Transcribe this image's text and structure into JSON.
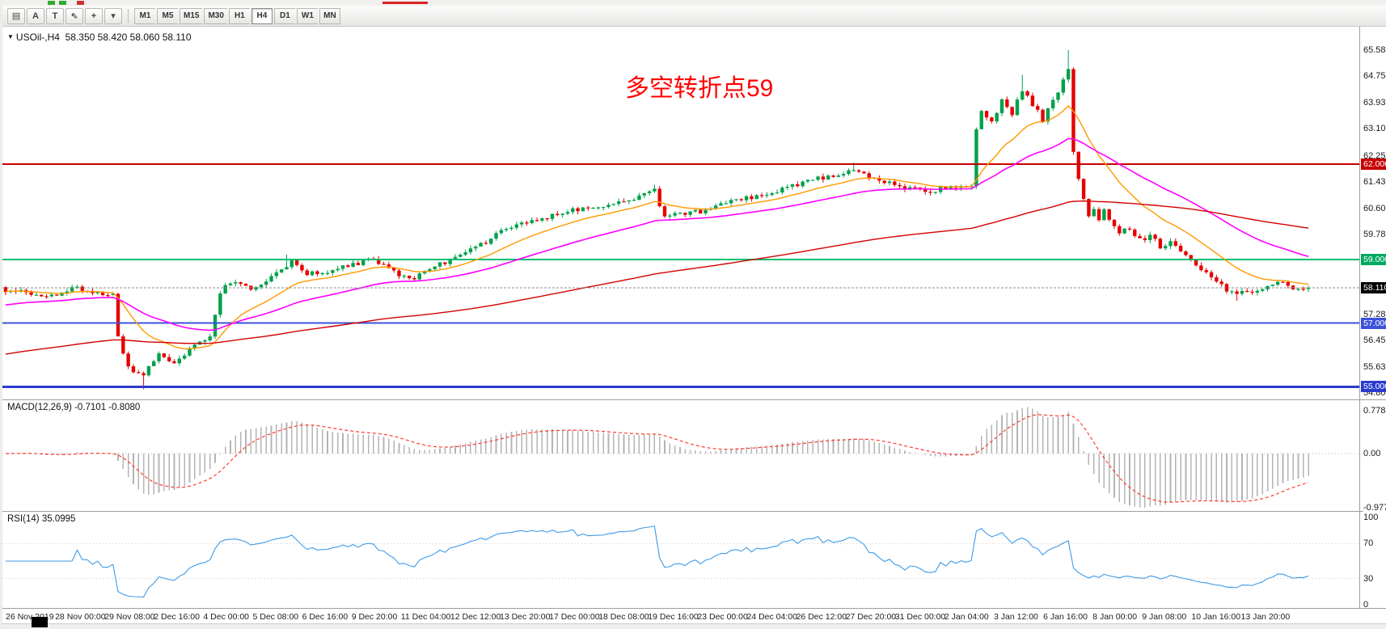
{
  "toolbar": {
    "tool_buttons": [
      {
        "name": "chart-mode-button",
        "glyph": "▤"
      },
      {
        "name": "annotate-a-button",
        "glyph": "A"
      },
      {
        "name": "text-tool-button",
        "glyph": "T"
      },
      {
        "name": "cursor-tool-button",
        "glyph": "⇖"
      },
      {
        "name": "crosshair-tool-button",
        "glyph": "+"
      },
      {
        "name": "tools-dropdown-button",
        "glyph": "▾"
      }
    ],
    "timeframes": [
      "M1",
      "M5",
      "M15",
      "M30",
      "H1",
      "H4",
      "D1",
      "W1",
      "MN"
    ],
    "active_timeframe": "H4"
  },
  "price_panel": {
    "marker_glyph": "▼",
    "title": "USOil-,H4",
    "ohlc": "58.350 58.420 58.060 58.110",
    "annotation": {
      "text": "多空转折点59",
      "color": "#ff0000"
    },
    "scale_labels": [
      "65.580",
      "64.755",
      "63.930",
      "63.105",
      "62.255",
      "61.430",
      "60.605",
      "59.780",
      "57.280",
      "56.455",
      "55.630",
      "54.805"
    ],
    "badges": [
      {
        "name": "level-badge-62",
        "text": "62.000",
        "value": 62.0,
        "color": "#c80000"
      },
      {
        "name": "level-badge-59",
        "text": "59.000",
        "value": 59.0,
        "color": "#00a862"
      },
      {
        "name": "current-price-badge",
        "text": "58.110",
        "value": 58.11,
        "color": "#000000"
      },
      {
        "name": "level-badge-57",
        "text": "57.000",
        "value": 57.0,
        "color": "#3c52d9"
      },
      {
        "name": "level-badge-55",
        "text": "55.000",
        "value": 55.0,
        "color": "#2b3bcf"
      }
    ],
    "hlines": [
      {
        "value": 62.0,
        "color": "#c80000",
        "width": 2
      },
      {
        "value": 59.0,
        "color": "#00bf6f",
        "width": 2
      },
      {
        "value": 57.0,
        "color": "#3c52d9",
        "width": 2
      },
      {
        "value": 55.0,
        "color": "#2b3bcf",
        "width": 3
      }
    ],
    "current_line": {
      "value": 58.11,
      "color": "#8c8c8c",
      "width": 1,
      "dash": "3,2"
    }
  },
  "macd_panel": {
    "title": "MACD(12,26,9)",
    "values": "-0.7101 -0.8080",
    "scale": [
      {
        "text": "0.7782",
        "value": 0.7782
      },
      {
        "text": "0.00",
        "value": 0.0
      },
      {
        "text": "-0.9773",
        "value": -0.9773
      }
    ]
  },
  "rsi_panel": {
    "title": "RSI(14)",
    "value": "35.0995",
    "scale": [
      {
        "text": "100",
        "value": 100
      },
      {
        "text": "70",
        "value": 70
      },
      {
        "text": "30",
        "value": 30
      },
      {
        "text": "0",
        "value": 0
      }
    ],
    "levels": [
      70,
      30
    ]
  },
  "chart_data": {
    "type": "candlestick",
    "symbol": "USOil-",
    "timeframe": "H4",
    "current_price": 58.11,
    "bars": 256,
    "up_color": "#00a14b",
    "down_color": "#e60000",
    "price_path": [
      [
        0,
        58.05
      ],
      [
        8,
        57.85
      ],
      [
        14,
        58.1
      ],
      [
        18,
        57.95
      ],
      [
        21,
        57.9
      ],
      [
        22,
        56.6
      ],
      [
        24,
        55.6
      ],
      [
        27,
        55.35
      ],
      [
        30,
        56.05
      ],
      [
        33,
        55.7
      ],
      [
        36,
        56.2
      ],
      [
        40,
        56.5
      ],
      [
        42,
        58.0
      ],
      [
        44,
        58.3
      ],
      [
        48,
        58.1
      ],
      [
        52,
        58.4
      ],
      [
        56,
        58.9
      ],
      [
        59,
        58.55
      ],
      [
        64,
        58.65
      ],
      [
        68,
        58.85
      ],
      [
        72,
        59.0
      ],
      [
        76,
        58.6
      ],
      [
        80,
        58.4
      ],
      [
        84,
        58.75
      ],
      [
        89,
        59.2
      ],
      [
        94,
        59.55
      ],
      [
        98,
        59.95
      ],
      [
        103,
        60.2
      ],
      [
        108,
        60.45
      ],
      [
        113,
        60.6
      ],
      [
        118,
        60.75
      ],
      [
        123,
        60.95
      ],
      [
        127,
        61.15
      ],
      [
        129,
        60.35
      ],
      [
        133,
        60.45
      ],
      [
        137,
        60.55
      ],
      [
        142,
        60.8
      ],
      [
        147,
        61.0
      ],
      [
        152,
        61.2
      ],
      [
        157,
        61.45
      ],
      [
        162,
        61.65
      ],
      [
        166,
        61.8
      ],
      [
        170,
        61.55
      ],
      [
        175,
        61.3
      ],
      [
        180,
        61.15
      ],
      [
        185,
        61.25
      ],
      [
        189,
        61.3
      ],
      [
        190,
        63.1
      ],
      [
        191,
        63.6
      ],
      [
        193,
        63.3
      ],
      [
        195,
        64.0
      ],
      [
        197,
        63.6
      ],
      [
        199,
        64.3
      ],
      [
        201,
        63.9
      ],
      [
        203,
        63.4
      ],
      [
        204,
        63.8
      ],
      [
        206,
        64.2
      ],
      [
        208,
        65.0
      ],
      [
        209,
        62.4
      ],
      [
        210,
        61.6
      ],
      [
        211,
        60.9
      ],
      [
        212,
        60.3
      ],
      [
        213,
        60.6
      ],
      [
        214,
        60.3
      ],
      [
        215,
        60.55
      ],
      [
        216,
        60.2
      ],
      [
        218,
        59.85
      ],
      [
        220,
        59.95
      ],
      [
        222,
        59.6
      ],
      [
        224,
        59.75
      ],
      [
        226,
        59.4
      ],
      [
        228,
        59.55
      ],
      [
        230,
        59.2
      ],
      [
        232,
        58.95
      ],
      [
        233,
        58.8
      ],
      [
        235,
        58.55
      ],
      [
        237,
        58.3
      ],
      [
        239,
        58.05
      ],
      [
        241,
        57.9
      ],
      [
        243,
        58.05
      ],
      [
        245,
        57.95
      ],
      [
        247,
        58.2
      ],
      [
        249,
        58.35
      ],
      [
        251,
        58.2
      ],
      [
        253,
        58.0
      ],
      [
        255,
        58.11
      ]
    ],
    "special_wicks": [
      {
        "i": 27,
        "low": 54.92
      },
      {
        "i": 55,
        "high": 59.15
      },
      {
        "i": 127,
        "high": 61.35
      },
      {
        "i": 166,
        "high": 62.05
      },
      {
        "i": 199,
        "high": 64.8
      },
      {
        "i": 208,
        "high": 65.58
      },
      {
        "i": 241,
        "low": 57.7
      }
    ],
    "moving_averages": [
      {
        "name": "ma-fast",
        "color": "#ff9900",
        "period": 16,
        "start": 58.0,
        "width": 1.4
      },
      {
        "name": "ma-mid",
        "color": "#ff00ff",
        "period": 44,
        "start": 57.55,
        "width": 1.6
      },
      {
        "name": "ma-slow",
        "color": "#d40000",
        "period": 160,
        "start": 56.0,
        "width": 1.4
      }
    ],
    "macd": {
      "fast": 12,
      "slow": 26,
      "signal": 9,
      "hist_color": "#b4b4b4",
      "signal_color": "#ff3b30",
      "scale_min": -0.9773,
      "scale_max": 0.7782
    },
    "rsi": {
      "period": 14,
      "color": "#3d9be9"
    },
    "time_labels": [
      "26 Nov 2019",
      "28 Nov 00:00",
      "29 Nov 08:00",
      "2 Dec 16:00",
      "4 Dec 00:00",
      "5 Dec 08:00",
      "6 Dec 16:00",
      "9 Dec 20:00",
      "11 Dec 04:00",
      "12 Dec 12:00",
      "13 Dec 20:00",
      "17 Dec 00:00",
      "18 Dec 08:00",
      "19 Dec 16:00",
      "23 Dec 00:00",
      "24 Dec 04:00",
      "26 Dec 12:00",
      "27 Dec 20:00",
      "31 Dec 00:00",
      "2 Jan 04:00",
      "3 Jan 12:00",
      "6 Jan 16:00",
      "8 Jan 00:00",
      "9 Jan 08:00",
      "10 Jan 16:00",
      "13 Jan 20:00"
    ]
  }
}
